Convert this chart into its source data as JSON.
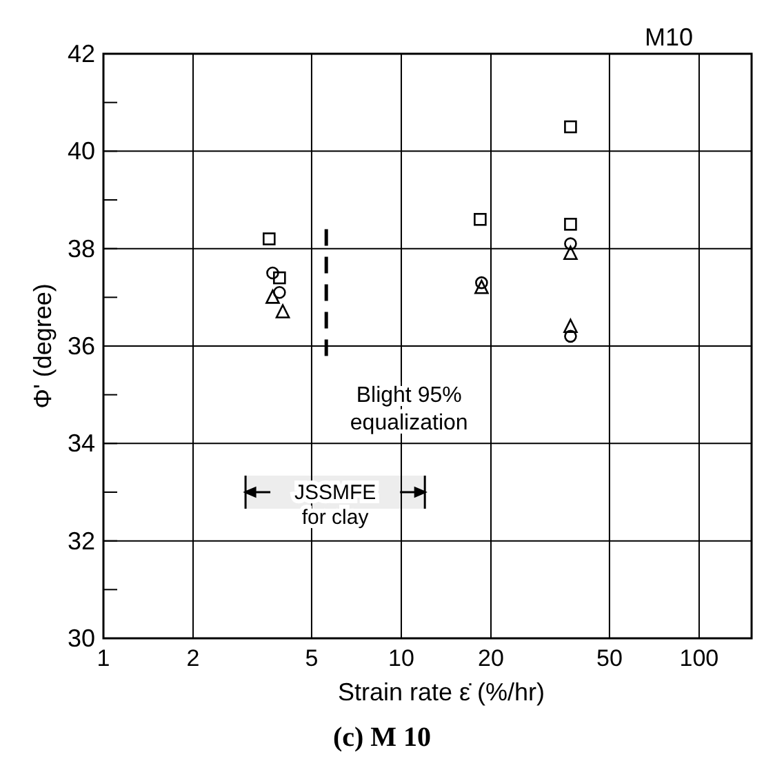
{
  "chart_data": {
    "type": "scatter",
    "title": "M10",
    "xlabel": "Strain rate  ε̇ (%/hr)",
    "ylabel": "Φ' (degree)",
    "log": "x",
    "grid": true,
    "xlim": [
      1,
      150
    ],
    "xticks": [
      1,
      2,
      5,
      10,
      20,
      50,
      100
    ],
    "ylim": [
      30,
      42
    ],
    "yticks": [
      30,
      {
        "value": 31,
        "label": null
      },
      32,
      {
        "value": 33,
        "label": null
      },
      34,
      {
        "value": 35,
        "label": null
      },
      36,
      {
        "value": 37,
        "label": null
      },
      38,
      {
        "value": 39,
        "label": null
      },
      40,
      {
        "value": 41,
        "label": null
      },
      42
    ],
    "series": [
      {
        "color": "#000000",
        "marker": "square",
        "x": [
          3.6,
          3.9,
          18.4,
          37,
          37
        ],
        "values": [
          38.2,
          37.4,
          38.6,
          40.5,
          38.5
        ]
      },
      {
        "color": "#000000",
        "marker": "circle",
        "x": [
          3.7,
          3.9,
          18.6,
          37,
          37
        ],
        "values": [
          37.5,
          37.1,
          37.3,
          38.1,
          36.2
        ]
      },
      {
        "color": "#000000",
        "marker": "triangle",
        "x": [
          3.7,
          4.0,
          18.6,
          37,
          37
        ],
        "values": [
          37.0,
          36.7,
          37.2,
          37.9,
          36.4
        ]
      }
    ],
    "ref_lines": [
      {
        "axis": "x",
        "value": 5.6,
        "label": "Blight 95%\nequalization",
        "line_style": "dashed",
        "color": "#000000"
      }
    ],
    "bands": [
      {
        "axis": "x",
        "from": 3,
        "to": 12,
        "label": "JSSMFE\nfor clay",
        "color": "#000000"
      }
    ],
    "annotations": [
      "(c)  M 10"
    ]
  }
}
